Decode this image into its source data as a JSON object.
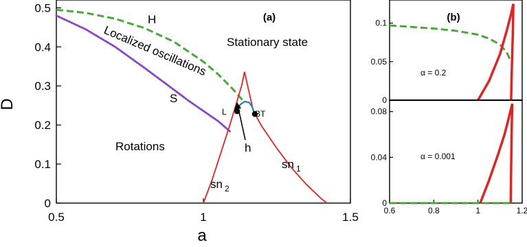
{
  "chart_data": [
    {
      "type": "line",
      "panel_label": "(a)",
      "xlabel": "a",
      "ylabel": "D",
      "xlim": [
        0.5,
        1.5
      ],
      "ylim": [
        0,
        0.52
      ],
      "x_ticks": [
        "0.5",
        "1",
        "1.5"
      ],
      "y_ticks": [
        "0",
        "0.1",
        "0.2",
        "0.3",
        "0.4",
        "0.5"
      ],
      "x_tick_values": [
        0.5,
        1.0,
        1.5
      ],
      "y_tick_values": [
        0,
        0.1,
        0.2,
        0.3,
        0.4,
        0.5
      ],
      "series": [
        {
          "name": "H",
          "style": "dashed",
          "color": "#4aa83a",
          "x": [
            0.5,
            0.6,
            0.7,
            0.8,
            0.9,
            1.0,
            1.05,
            1.1,
            1.14
          ],
          "y": [
            0.495,
            0.487,
            0.472,
            0.448,
            0.413,
            0.362,
            0.33,
            0.292,
            0.258
          ]
        },
        {
          "name": "S",
          "style": "dotted",
          "color": "#8a44c8",
          "x": [
            0.5,
            0.6,
            0.7,
            0.8,
            0.9,
            0.95,
            1.0,
            1.05,
            1.09
          ],
          "y": [
            0.48,
            0.445,
            0.4,
            0.346,
            0.29,
            0.262,
            0.236,
            0.21,
            0.184
          ]
        },
        {
          "name": "sn1",
          "style": "solid",
          "color": "#e82020",
          "x": [
            1.14,
            1.17,
            1.2,
            1.25,
            1.3,
            1.35,
            1.4,
            1.42
          ],
          "y": [
            0.336,
            0.235,
            0.195,
            0.14,
            0.09,
            0.048,
            0.012,
            0.0
          ]
        },
        {
          "name": "sn2",
          "style": "solid",
          "color": "#e82020",
          "x": [
            1.0,
            1.03,
            1.06,
            1.09,
            1.11,
            1.13,
            1.14
          ],
          "y": [
            0.0,
            0.06,
            0.13,
            0.2,
            0.25,
            0.3,
            0.336
          ]
        },
        {
          "name": "h",
          "style": "solid",
          "color": "#2a78c8",
          "x": [
            1.115,
            1.125,
            1.14,
            1.155,
            1.165,
            1.175
          ],
          "y": [
            0.235,
            0.252,
            0.26,
            0.258,
            0.248,
            0.228
          ]
        }
      ],
      "points": [
        {
          "label": "L",
          "x": 1.115,
          "y": 0.235
        },
        {
          "label": "BT",
          "x": 1.175,
          "y": 0.228
        }
      ],
      "annotations": [
        "H",
        "S",
        "Localized oscillations",
        "Stationary state",
        "Rotations",
        "h",
        "sn",
        "1",
        "sn",
        "2",
        "L",
        "BT"
      ]
    },
    {
      "type": "line",
      "panel_label": "(b)",
      "annotation": "α = 0.2",
      "xlim": [
        0.6,
        1.2
      ],
      "ylim": [
        0,
        0.13
      ],
      "y_ticks": [
        "0",
        "0.05",
        "0.1"
      ],
      "y_tick_values": [
        0,
        0.05,
        0.1
      ],
      "series": [
        {
          "style": "dashed",
          "color": "#4aa83a",
          "x": [
            0.6,
            0.7,
            0.8,
            0.9,
            1.0,
            1.05,
            1.1,
            1.13,
            1.15
          ],
          "y": [
            0.097,
            0.095,
            0.093,
            0.09,
            0.085,
            0.08,
            0.072,
            0.062,
            0.05
          ]
        },
        {
          "style": "solid",
          "color": "#e82020",
          "x": [
            1.0,
            1.05,
            1.1,
            1.13,
            1.15,
            1.16
          ],
          "y": [
            0.0,
            0.025,
            0.06,
            0.09,
            0.112,
            0.125
          ]
        },
        {
          "style": "solid",
          "color": "#e82020",
          "x": [
            1.16,
            1.158,
            1.155,
            1.152,
            1.15
          ],
          "y": [
            0.125,
            0.09,
            0.06,
            0.03,
            0.0
          ]
        }
      ]
    },
    {
      "type": "line",
      "annotation": "α = 0.001",
      "xlim": [
        0.6,
        1.2
      ],
      "ylim": [
        0,
        0.09
      ],
      "x_ticks": [
        "0.6",
        "0.8",
        "1",
        "1.2"
      ],
      "x_tick_values": [
        0.6,
        0.8,
        1.0,
        1.2
      ],
      "y_ticks": [
        "0",
        "0.04",
        "0.08"
      ],
      "y_tick_values": [
        0,
        0.04,
        0.08
      ],
      "series": [
        {
          "style": "dashed",
          "color": "#4aa83a",
          "x": [
            0.6,
            0.8,
            1.0,
            1.1,
            1.15
          ],
          "y": [
            0.0,
            0.0,
            0.0,
            0.0,
            0.0
          ]
        },
        {
          "style": "solid",
          "color": "#e82020",
          "x": [
            1.01,
            1.05,
            1.09,
            1.12,
            1.14,
            1.155
          ],
          "y": [
            0.0,
            0.02,
            0.042,
            0.06,
            0.075,
            0.087
          ]
        },
        {
          "style": "solid",
          "color": "#e82020",
          "x": [
            1.155,
            1.152,
            1.15,
            1.148
          ],
          "y": [
            0.087,
            0.06,
            0.03,
            0.0
          ]
        }
      ]
    }
  ]
}
